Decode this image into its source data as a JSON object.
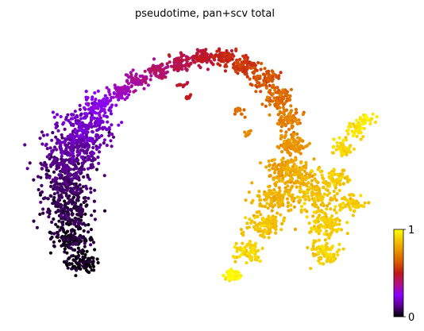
{
  "chart_data": {
    "type": "scatter",
    "title": "pseudotime, pan+scv total",
    "xlabel": "",
    "ylabel": "",
    "xlim": [
      0,
      100
    ],
    "ylim": [
      0,
      100
    ],
    "grid": false,
    "axes_visible": false,
    "legend": "colorbar-right",
    "colormap": "gnuplot",
    "colormap_stops": [
      "#000000",
      "#5a0090",
      "#8a00ff",
      "#b01080",
      "#c01818",
      "#d85a00",
      "#e99000",
      "#f4c400",
      "#ffff00"
    ],
    "colorbar": {
      "min": 0,
      "max": 1,
      "ticks": [
        "0",
        "1"
      ]
    },
    "point_color": "pseudotime",
    "skeleton": [
      {
        "x": 16.1,
        "y": 14.0,
        "value": 0.01,
        "spread": 4.0,
        "weight": 3.5,
        "shape": "lobe"
      },
      {
        "x": 13.9,
        "y": 23.0,
        "value": 0.03,
        "spread": 5.0,
        "weight": 5.0,
        "shape": "lobe"
      },
      {
        "x": 12.2,
        "y": 32.0,
        "value": 0.05,
        "spread": 5.5,
        "weight": 6.0,
        "shape": "lobe"
      },
      {
        "x": 11.7,
        "y": 41.0,
        "value": 0.07,
        "spread": 6.0,
        "weight": 6.0,
        "shape": "lobe"
      },
      {
        "x": 12.7,
        "y": 50.0,
        "value": 0.1,
        "spread": 6.5,
        "weight": 7.0,
        "shape": "lobe"
      },
      {
        "x": 14.8,
        "y": 58.0,
        "value": 0.14,
        "spread": 6.5,
        "weight": 7.0,
        "shape": "lobe"
      },
      {
        "x": 17.3,
        "y": 65.0,
        "value": 0.18,
        "spread": 6.0,
        "weight": 6.0,
        "shape": "lobe"
      },
      {
        "x": 21.1,
        "y": 72.0,
        "value": 0.24,
        "spread": 4.0,
        "weight": 3.0,
        "shape": "band"
      },
      {
        "x": 27.1,
        "y": 77.0,
        "value": 0.3,
        "spread": 2.8,
        "weight": 2.5,
        "shape": "band"
      },
      {
        "x": 31.3,
        "y": 81.0,
        "value": 0.34,
        "spread": 2.8,
        "weight": 2.5,
        "shape": "band"
      },
      {
        "x": 37.3,
        "y": 85.0,
        "value": 0.38,
        "spread": 2.8,
        "weight": 3.0,
        "shape": "band"
      },
      {
        "x": 43.2,
        "y": 88.0,
        "value": 0.42,
        "spread": 2.6,
        "weight": 3.0,
        "shape": "band"
      },
      {
        "x": 49.2,
        "y": 90.0,
        "value": 0.46,
        "spread": 2.5,
        "weight": 3.0,
        "shape": "band"
      },
      {
        "x": 55.1,
        "y": 90.0,
        "value": 0.5,
        "spread": 2.6,
        "weight": 3.0,
        "shape": "band"
      },
      {
        "x": 61.0,
        "y": 87.0,
        "value": 0.55,
        "spread": 3.0,
        "weight": 3.0,
        "shape": "band"
      },
      {
        "x": 66.1,
        "y": 82.0,
        "value": 0.6,
        "spread": 3.5,
        "weight": 3.0,
        "shape": "band"
      },
      {
        "x": 70.3,
        "y": 75.0,
        "value": 0.65,
        "spread": 3.5,
        "weight": 3.0,
        "shape": "band"
      },
      {
        "x": 72.9,
        "y": 67.0,
        "value": 0.7,
        "spread": 3.3,
        "weight": 3.0,
        "shape": "band"
      },
      {
        "x": 73.7,
        "y": 58.0,
        "value": 0.74,
        "spread": 3.5,
        "weight": 3.5,
        "shape": "band"
      },
      {
        "x": 72.0,
        "y": 48.0,
        "value": 0.78,
        "spread": 4.5,
        "weight": 4.0,
        "shape": "band"
      },
      {
        "x": 69.5,
        "y": 38.0,
        "value": 0.82,
        "spread": 5.0,
        "weight": 5.0,
        "shape": "band"
      },
      {
        "x": 66.1,
        "y": 28.0,
        "value": 0.86,
        "spread": 4.5,
        "weight": 4.0,
        "shape": "band"
      },
      {
        "x": 61.8,
        "y": 18.0,
        "value": 0.9,
        "spread": 3.0,
        "weight": 3.0,
        "shape": "band"
      },
      {
        "x": 57.6,
        "y": 9.0,
        "value": 0.97,
        "spread": 2.0,
        "weight": 2.0,
        "shape": "band"
      },
      {
        "x": 76.3,
        "y": 46.0,
        "value": 0.82,
        "spread": 4.0,
        "weight": 3.0,
        "shape": "band"
      },
      {
        "x": 80.5,
        "y": 38.0,
        "value": 0.86,
        "spread": 5.0,
        "weight": 4.0,
        "shape": "band"
      },
      {
        "x": 83.1,
        "y": 28.0,
        "value": 0.88,
        "spread": 4.5,
        "weight": 4.0,
        "shape": "band"
      },
      {
        "x": 82.2,
        "y": 18.0,
        "value": 0.89,
        "spread": 4.0,
        "weight": 3.5,
        "shape": "band"
      },
      {
        "x": 85.6,
        "y": 45.0,
        "value": 0.88,
        "spread": 3.5,
        "weight": 2.5,
        "shape": "band"
      },
      {
        "x": 88.1,
        "y": 56.0,
        "value": 0.9,
        "spread": 3.0,
        "weight": 2.0,
        "shape": "band"
      },
      {
        "x": 91.5,
        "y": 63.0,
        "value": 0.93,
        "spread": 2.5,
        "weight": 1.5,
        "shape": "band"
      },
      {
        "x": 94.1,
        "y": 67.0,
        "value": 0.96,
        "spread": 2.0,
        "weight": 1.2,
        "shape": "band"
      },
      {
        "x": 89.8,
        "y": 36.0,
        "value": 0.88,
        "spread": 3.5,
        "weight": 2.0,
        "shape": "band"
      },
      {
        "x": 44.1,
        "y": 80.0,
        "value": 0.46,
        "spread": 1.0,
        "weight": 0.4,
        "shape": "band"
      },
      {
        "x": 45.3,
        "y": 75.0,
        "value": 0.47,
        "spread": 0.8,
        "weight": 0.3,
        "shape": "band"
      },
      {
        "x": 59.7,
        "y": 70.0,
        "value": 0.66,
        "spread": 1.5,
        "weight": 0.5,
        "shape": "band"
      },
      {
        "x": 61.9,
        "y": 62.0,
        "value": 0.72,
        "spread": 1.2,
        "weight": 0.4,
        "shape": "band"
      }
    ]
  }
}
